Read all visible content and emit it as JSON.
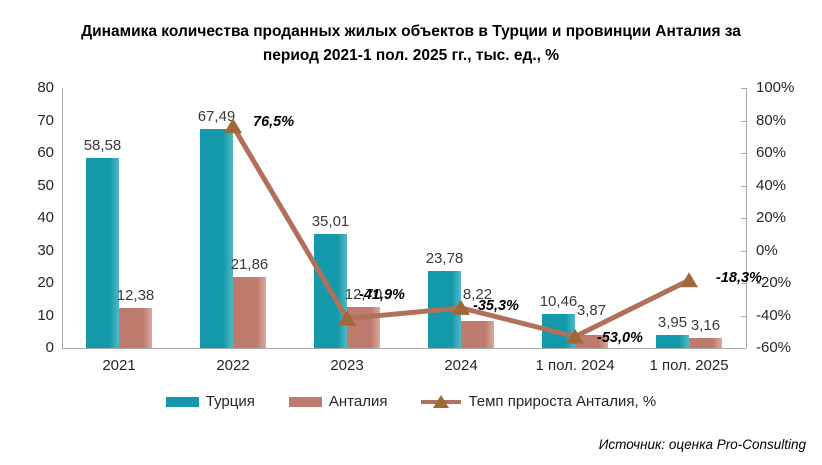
{
  "title": "Динамика количества проданных жилых объектов в Турции и провинции Анталия за период 2021-1 пол. 2025 гг., тыс. ед., %",
  "source": "Источник: оценка Pro-Consulting",
  "chart_data": {
    "type": "bar",
    "subtype": "grouped bars with overlaid growth-rate line",
    "categories": [
      "2021",
      "2022",
      "2023",
      "2024",
      "1 пол. 2024",
      "1 пол. 2025"
    ],
    "series": [
      {
        "name": "Турция",
        "type": "bar",
        "color": "#1499aa",
        "color_light": "#52b9c6",
        "values": [
          58.58,
          67.49,
          35.01,
          23.78,
          10.46,
          3.95
        ],
        "labels": [
          "58,58",
          "67,49",
          "35,01",
          "23,78",
          "10,46",
          "3,95"
        ]
      },
      {
        "name": "Анталия",
        "type": "bar",
        "color": "#bf7a6e",
        "color_light": "#dba99e",
        "values": [
          12.38,
          21.86,
          12.7,
          8.22,
          3.87,
          3.16
        ],
        "labels": [
          "12,38",
          "21,86",
          "12,70",
          "8,22",
          "3,87",
          "3,16"
        ]
      },
      {
        "name": "Темп прироста Анталия, %",
        "type": "line",
        "color": "#b1705a",
        "marker_color": "#9e6838",
        "values": [
          null,
          76.5,
          -41.9,
          -35.3,
          -53.0,
          -18.3
        ],
        "labels": [
          "",
          "76,5%",
          "-41,9%",
          "-35,3%",
          "-53,0%",
          "-18,3%"
        ]
      }
    ],
    "left_axis": {
      "min": 0,
      "max": 80,
      "step": 10,
      "ticks": [
        "80",
        "70",
        "60",
        "50",
        "40",
        "30",
        "20",
        "10",
        "0"
      ]
    },
    "right_axis": {
      "min": -60,
      "max": 100,
      "step": 20,
      "ticks": [
        "100%",
        "80%",
        "60%",
        "40%",
        "20%",
        "0%",
        "-20%",
        "-40%",
        "-60%"
      ]
    },
    "grid": "off",
    "legend_position": "bottom"
  }
}
